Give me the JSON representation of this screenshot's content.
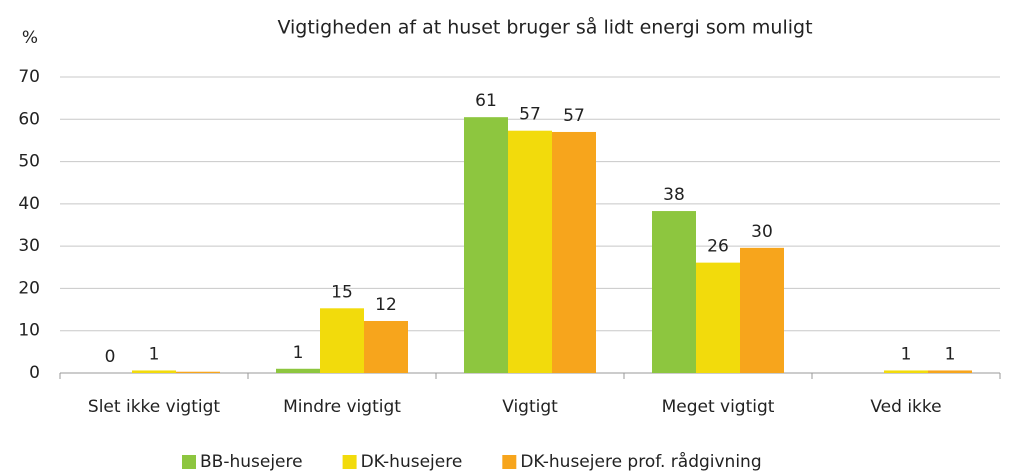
{
  "chart_data": {
    "type": "bar",
    "title": "Vigtigheden af at huset bruger så lidt energi som muligt",
    "ylabel": "%",
    "categories": [
      "Slet ikke vigtigt",
      "Mindre vigtigt",
      "Vigtigt",
      "Meget vigtigt",
      "Ved ikke"
    ],
    "series": [
      {
        "name": "BB-husejere",
        "color": "#8dc63f",
        "values": [
          0,
          1.0,
          60.5,
          38.3,
          null
        ],
        "value_labels": [
          "0",
          "1",
          "61",
          "38",
          null
        ]
      },
      {
        "name": "DK-husejere",
        "color": "#f2db0c",
        "values": [
          0.6,
          15.3,
          57.3,
          26.1,
          0.6
        ],
        "value_labels": [
          "1",
          "15",
          "57",
          "26",
          "1"
        ]
      },
      {
        "name": "DK-husejere prof. rådgivning",
        "color": "#f7a51c",
        "values": [
          0.3,
          12.3,
          57.0,
          29.6,
          0.6
        ],
        "value_labels": [
          null,
          "12",
          "57",
          "30",
          "1"
        ]
      }
    ],
    "ylim": [
      0,
      70
    ],
    "yticks": [
      0,
      10,
      20,
      30,
      40,
      50,
      60,
      70
    ],
    "grid": true,
    "legend": "bottom"
  }
}
